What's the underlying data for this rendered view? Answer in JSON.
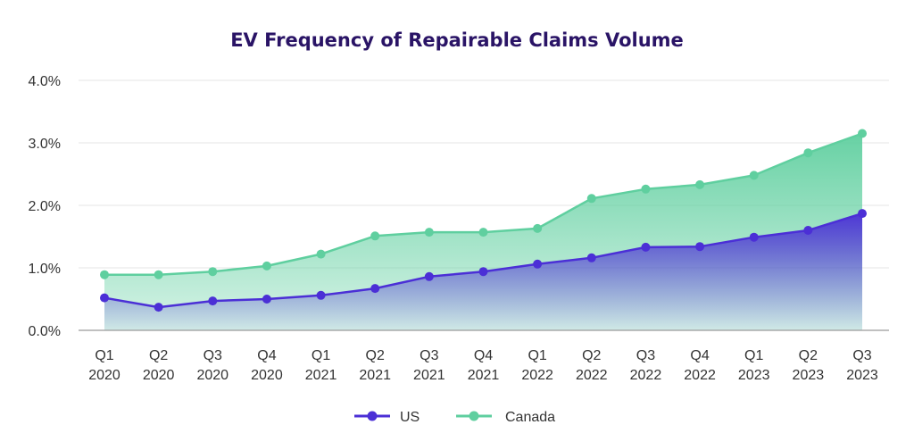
{
  "chart_data": {
    "type": "area",
    "title": "EV Frequency of Repairable Claims Volume",
    "categories": [
      [
        "Q1",
        "2020"
      ],
      [
        "Q2",
        "2020"
      ],
      [
        "Q3",
        "2020"
      ],
      [
        "Q4",
        "2020"
      ],
      [
        "Q1",
        "2021"
      ],
      [
        "Q2",
        "2021"
      ],
      [
        "Q3",
        "2021"
      ],
      [
        "Q4",
        "2021"
      ],
      [
        "Q1",
        "2022"
      ],
      [
        "Q2",
        "2022"
      ],
      [
        "Q3",
        "2022"
      ],
      [
        "Q4",
        "2022"
      ],
      [
        "Q1",
        "2023"
      ],
      [
        "Q2",
        "2023"
      ],
      [
        "Q3",
        "2023"
      ]
    ],
    "yticks": [
      "0.0%",
      "1.0%",
      "2.0%",
      "3.0%",
      "4.0%"
    ],
    "ylim": [
      0,
      4
    ],
    "grid": true,
    "legend_position": "bottom-center",
    "series": [
      {
        "name": "US",
        "color": "#4b2fd6",
        "values": [
          0.52,
          0.37,
          0.47,
          0.5,
          0.56,
          0.67,
          0.86,
          0.94,
          1.06,
          1.16,
          1.33,
          1.34,
          1.49,
          1.6,
          1.87
        ]
      },
      {
        "name": "Canada",
        "color": "#5fcf9f",
        "values": [
          0.89,
          0.89,
          0.94,
          1.03,
          1.22,
          1.51,
          1.57,
          1.57,
          1.63,
          2.11,
          2.26,
          2.33,
          2.48,
          2.84,
          3.15
        ]
      }
    ]
  }
}
